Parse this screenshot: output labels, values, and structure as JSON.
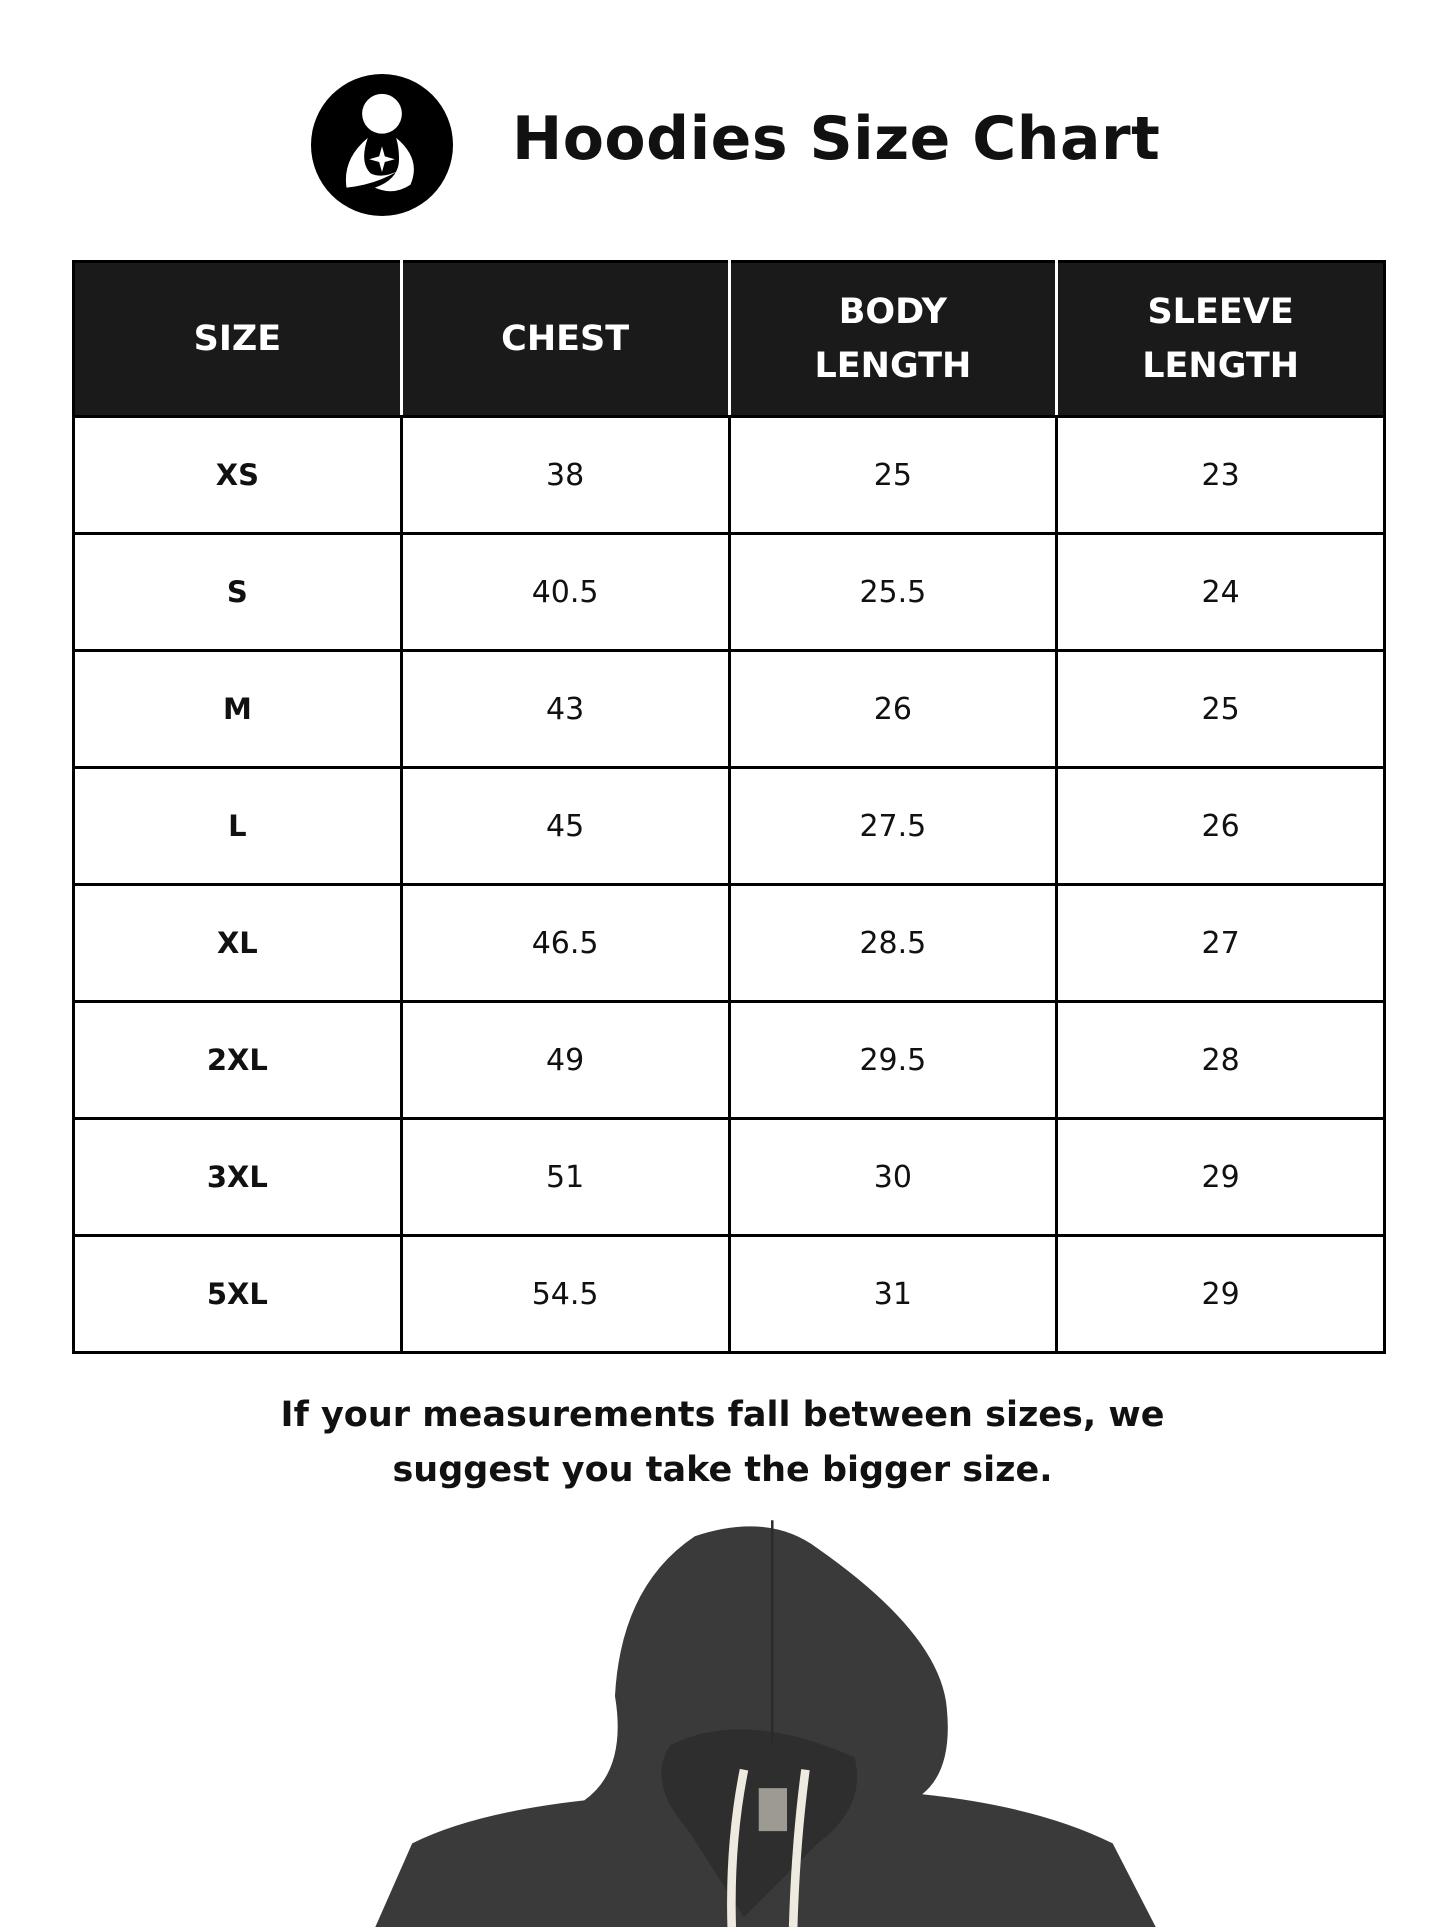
{
  "header": {
    "title": "Hoodies Size Chart",
    "logo_icon": "mother-child-logo-icon"
  },
  "table": {
    "columns": [
      [
        "SIZE"
      ],
      [
        "CHEST"
      ],
      [
        "BODY",
        "LENGTH"
      ],
      [
        "SLEEVE",
        "LENGTH"
      ]
    ],
    "rows": [
      [
        "XS",
        "38",
        "25",
        "23"
      ],
      [
        "S",
        "40.5",
        "25.5",
        "24"
      ],
      [
        "M",
        "43",
        "26",
        "25"
      ],
      [
        "L",
        "45",
        "27.5",
        "26"
      ],
      [
        "XL",
        "46.5",
        "28.5",
        "27"
      ],
      [
        "2XL",
        "49",
        "29.5",
        "28"
      ],
      [
        "3XL",
        "51",
        "30",
        "29"
      ],
      [
        "5XL",
        "54.5",
        "31",
        "29"
      ]
    ]
  },
  "note": {
    "line1": "If your measurements fall between sizes, we",
    "line2": "suggest you take the bigger size."
  },
  "colors": {
    "header_bg": "#1a1a1a",
    "hoodie": "#3a3a3b",
    "drawstring": "#efeae0"
  }
}
